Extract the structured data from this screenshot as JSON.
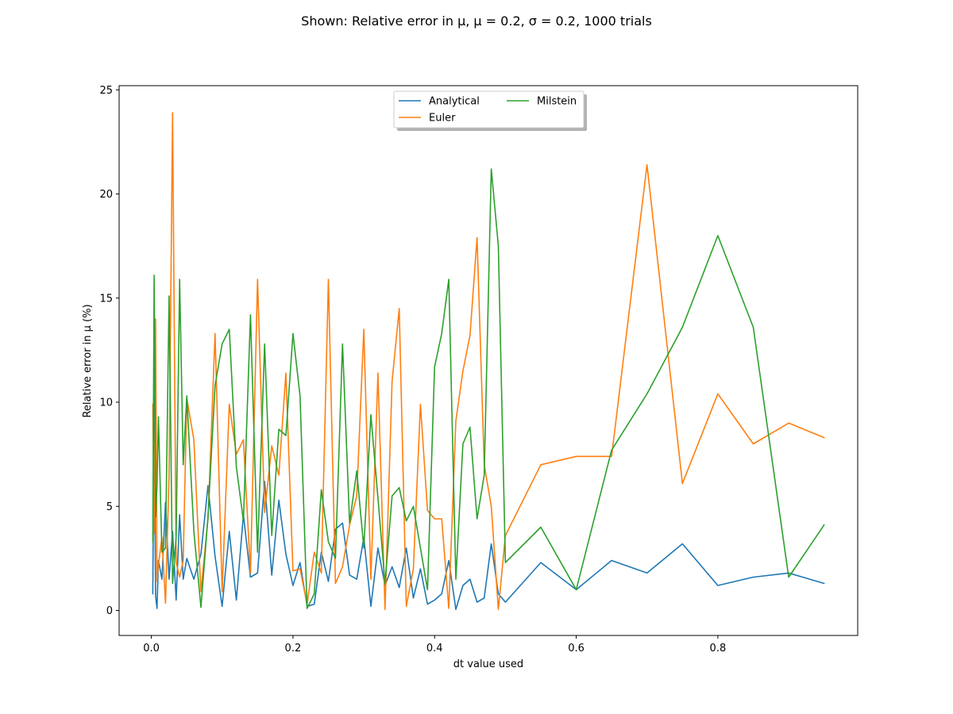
{
  "chart_data": {
    "type": "line",
    "title": "Shown: Relative error in μ, μ = 0.2, σ = 0.2, 1000 trials",
    "xlabel": "dt value used",
    "ylabel": "Relative error in μ (%)",
    "xlim": [
      -0.0455,
      0.9975
    ],
    "ylim": [
      -1.2,
      25.2
    ],
    "xticks": [
      0.0,
      0.2,
      0.4,
      0.6,
      0.8
    ],
    "xtick_labels": [
      "0.0",
      "0.2",
      "0.4",
      "0.6",
      "0.8"
    ],
    "yticks": [
      0,
      5,
      10,
      15,
      20,
      25
    ],
    "ytick_labels": [
      "0",
      "5",
      "10",
      "15",
      "20",
      "25"
    ],
    "grid": false,
    "legend": {
      "placement": "upper center",
      "columns": 2
    },
    "series": [
      {
        "name": "Analytical",
        "color": "#1f77b4",
        "x": [
          0.002,
          0.004,
          0.006,
          0.008,
          0.01,
          0.015,
          0.02,
          0.025,
          0.03,
          0.035,
          0.04,
          0.045,
          0.05,
          0.06,
          0.07,
          0.08,
          0.09,
          0.1,
          0.11,
          0.12,
          0.13,
          0.14,
          0.15,
          0.16,
          0.17,
          0.18,
          0.19,
          0.2,
          0.21,
          0.22,
          0.23,
          0.24,
          0.25,
          0.26,
          0.27,
          0.28,
          0.29,
          0.3,
          0.31,
          0.32,
          0.33,
          0.34,
          0.35,
          0.36,
          0.37,
          0.38,
          0.39,
          0.4,
          0.41,
          0.42,
          0.43,
          0.44,
          0.45,
          0.46,
          0.47,
          0.48,
          0.49,
          0.5,
          0.55,
          0.6,
          0.65,
          0.7,
          0.75,
          0.8,
          0.85,
          0.9,
          0.95
        ],
        "y": [
          0.8,
          10.3,
          0.7,
          0.1,
          2.4,
          1.5,
          5.2,
          1.5,
          3.8,
          0.5,
          4.6,
          1.5,
          2.5,
          1.5,
          2.7,
          6.0,
          2.6,
          0.2,
          3.8,
          0.5,
          4.6,
          1.6,
          1.8,
          6.2,
          1.7,
          5.3,
          2.7,
          1.2,
          2.3,
          0.2,
          0.3,
          2.8,
          1.4,
          3.9,
          4.2,
          1.7,
          1.5,
          3.5,
          0.2,
          3.0,
          1.2,
          2.1,
          1.1,
          3.0,
          0.6,
          2.0,
          0.3,
          0.5,
          0.8,
          2.4,
          0.05,
          1.2,
          1.5,
          0.4,
          0.6,
          3.2,
          0.8,
          0.4,
          2.3,
          1.0,
          2.4,
          1.8,
          3.2,
          1.2,
          1.6,
          1.8,
          1.3
        ]
      },
      {
        "name": "Euler",
        "color": "#ff7f0e",
        "x": [
          0.002,
          0.004,
          0.006,
          0.008,
          0.01,
          0.015,
          0.02,
          0.025,
          0.03,
          0.035,
          0.04,
          0.045,
          0.05,
          0.06,
          0.07,
          0.08,
          0.09,
          0.1,
          0.11,
          0.12,
          0.13,
          0.14,
          0.15,
          0.16,
          0.17,
          0.18,
          0.19,
          0.2,
          0.21,
          0.22,
          0.23,
          0.24,
          0.25,
          0.26,
          0.27,
          0.28,
          0.29,
          0.3,
          0.31,
          0.32,
          0.33,
          0.34,
          0.35,
          0.36,
          0.37,
          0.38,
          0.39,
          0.4,
          0.41,
          0.42,
          0.43,
          0.44,
          0.45,
          0.46,
          0.47,
          0.48,
          0.49,
          0.5,
          0.55,
          0.6,
          0.65,
          0.7,
          0.75,
          0.8,
          0.85,
          0.9,
          0.95
        ],
        "y": [
          9.9,
          3.7,
          14.0,
          1.4,
          2.2,
          3.5,
          0.35,
          6.5,
          23.9,
          2.3,
          1.6,
          2.4,
          10.2,
          8.2,
          0.9,
          4.4,
          13.3,
          0.9,
          9.9,
          7.5,
          8.2,
          1.8,
          15.9,
          4.7,
          7.9,
          6.5,
          11.4,
          1.9,
          2.0,
          0.3,
          2.8,
          1.8,
          15.9,
          1.3,
          2.1,
          4.1,
          5.5,
          13.5,
          1.5,
          11.4,
          0.05,
          11.0,
          14.5,
          0.2,
          2.0,
          9.9,
          4.8,
          4.4,
          4.4,
          0.1,
          9.1,
          11.5,
          13.2,
          17.9,
          7.0,
          5.0,
          0.05,
          3.6,
          7.0,
          7.4,
          7.4,
          21.4,
          6.1,
          10.4,
          8.0,
          9.0,
          8.3
        ]
      },
      {
        "name": "Milstein",
        "color": "#2ca02c",
        "x": [
          0.002,
          0.004,
          0.006,
          0.008,
          0.01,
          0.015,
          0.02,
          0.025,
          0.03,
          0.035,
          0.04,
          0.045,
          0.05,
          0.06,
          0.07,
          0.08,
          0.09,
          0.1,
          0.11,
          0.12,
          0.13,
          0.14,
          0.15,
          0.16,
          0.17,
          0.18,
          0.19,
          0.2,
          0.21,
          0.22,
          0.23,
          0.24,
          0.25,
          0.26,
          0.27,
          0.28,
          0.29,
          0.3,
          0.31,
          0.32,
          0.33,
          0.34,
          0.35,
          0.36,
          0.37,
          0.38,
          0.39,
          0.4,
          0.41,
          0.42,
          0.43,
          0.44,
          0.45,
          0.46,
          0.47,
          0.48,
          0.49,
          0.5,
          0.55,
          0.6,
          0.65,
          0.7,
          0.75,
          0.8,
          0.85,
          0.9,
          0.95
        ],
        "y": [
          3.3,
          16.1,
          4.5,
          6.0,
          9.3,
          2.8,
          3.0,
          15.1,
          1.3,
          3.5,
          15.9,
          7.0,
          10.3,
          3.8,
          0.15,
          4.5,
          10.8,
          12.8,
          13.5,
          6.9,
          4.3,
          14.2,
          2.8,
          12.8,
          3.6,
          8.7,
          8.4,
          13.3,
          10.3,
          0.1,
          0.8,
          5.8,
          3.3,
          2.5,
          12.8,
          4.2,
          6.7,
          3.0,
          9.4,
          5.4,
          1.3,
          5.5,
          5.9,
          4.3,
          5.0,
          3.0,
          1.0,
          11.7,
          13.3,
          15.9,
          1.5,
          8.0,
          8.8,
          4.4,
          6.5,
          21.2,
          17.5,
          2.3,
          4.0,
          1.0,
          7.7,
          10.4,
          13.6,
          18.0,
          13.6,
          1.6,
          4.1
        ]
      }
    ]
  }
}
